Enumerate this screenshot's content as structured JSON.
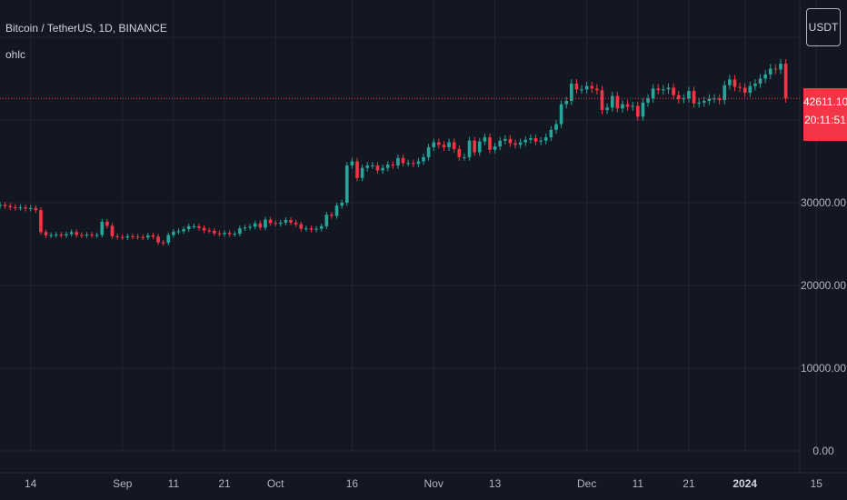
{
  "legend": {
    "symbol": "Bitcoin / TetherUS, 1D, BINANCE",
    "study": "ohlc"
  },
  "currency_button": "USDT",
  "last_price": {
    "value": "42611.10",
    "countdown": "20:11:51"
  },
  "colors": {
    "background": "#131722",
    "grid": "#232632",
    "up": "#26a69a",
    "down": "#f23645",
    "text": "#b2b5be"
  },
  "chart_data": {
    "type": "candlestick",
    "y_axis": {
      "ticks": [
        0,
        10000,
        20000,
        30000
      ],
      "tick_labels": [
        "0.00",
        "10000.00",
        "20000.00",
        "30000.00"
      ],
      "ylim": [
        0,
        54500
      ]
    },
    "x_axis": {
      "date_range": [
        "2023-08-08",
        "2024-01-21"
      ],
      "tick_dates": [
        "2023-08-14",
        "2023-09-01",
        "2023-09-11",
        "2023-09-21",
        "2023-10-01",
        "2023-10-16",
        "2023-11-01",
        "2023-11-13",
        "2023-12-01",
        "2023-12-11",
        "2023-12-21",
        "2024-01-01",
        "2024-01-15"
      ],
      "tick_labels": [
        "14",
        "Sep",
        "11",
        "21",
        "Oct",
        "16",
        "Nov",
        "13",
        "Dec",
        "11",
        "21",
        "2024",
        "15"
      ]
    },
    "last_price": 42611.1,
    "start_date": "2023-08-08",
    "closes": [
      29750,
      29600,
      29450,
      29400,
      29420,
      29300,
      29350,
      29100,
      26450,
      26050,
      26100,
      26150,
      26050,
      26200,
      26450,
      26100,
      26050,
      26150,
      26050,
      26100,
      27700,
      27200,
      25950,
      25850,
      25800,
      25950,
      25900,
      25850,
      25800,
      26050,
      25900,
      25200,
      25150,
      26100,
      26500,
      26550,
      26800,
      27150,
      27150,
      26950,
      26650,
      26600,
      26300,
      26200,
      26350,
      26200,
      26250,
      26900,
      27000,
      27100,
      27500,
      27000,
      27950,
      27550,
      27450,
      27600,
      27900,
      27600,
      27400,
      26850,
      26900,
      26750,
      26850,
      27150,
      28550,
      28400,
      29650,
      30000,
      34500,
      35000,
      33000,
      34200,
      34500,
      34500,
      33900,
      34200,
      34600,
      34500,
      35400,
      34800,
      34800,
      34700,
      35000,
      35500,
      36700,
      37300,
      37000,
      36700,
      37300,
      36500,
      35500,
      35500,
      37500,
      36100,
      37400,
      37900,
      36400,
      36800,
      37500,
      37700,
      37200,
      37000,
      37300,
      37600,
      37800,
      37400,
      37500,
      37900,
      38800,
      39500,
      41900,
      42300,
      44400,
      43700,
      43700,
      44100,
      43800,
      43600,
      41200,
      41500,
      42900,
      41400,
      41900,
      41600,
      41700,
      40400,
      42100,
      42600,
      43800,
      43600,
      43700,
      43900,
      43000,
      42500,
      42600,
      43500,
      42000,
      42100,
      42300,
      42600,
      42600,
      42400,
      44200,
      44900,
      44000,
      43900,
      43300,
      44100,
      44400,
      45000,
      45500,
      46200,
      46100,
      46800,
      42600
    ],
    "notes": "values estimated from pixel positions on the chart"
  }
}
